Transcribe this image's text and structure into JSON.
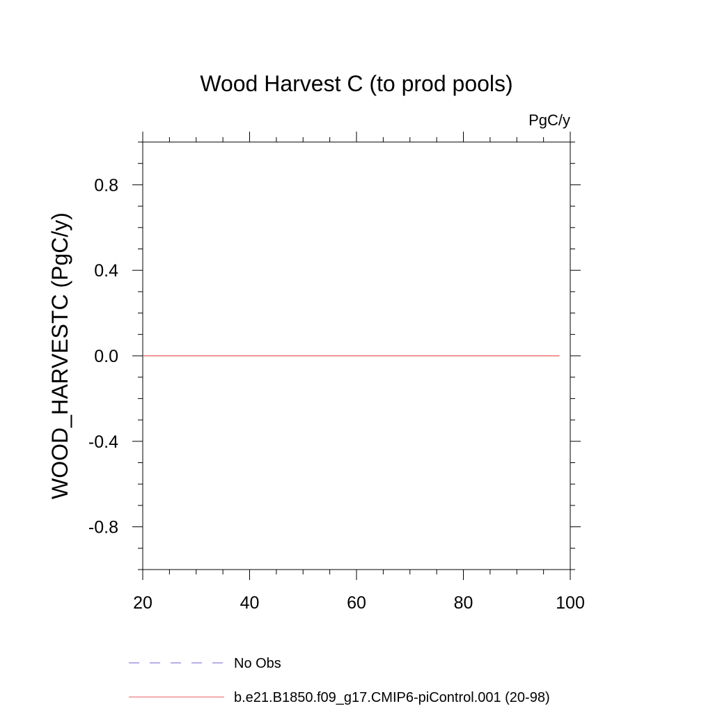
{
  "chart_data": {
    "type": "line",
    "title": "Wood Harvest C (to prod pools)",
    "units": "PgC/y",
    "ylabel": "WOOD_HARVESTC  (PgC/y)",
    "xlabel": "",
    "xlim": [
      20,
      100
    ],
    "ylim": [
      -1.0,
      1.0
    ],
    "x_ticks": [
      20,
      40,
      60,
      80,
      100
    ],
    "y_ticks": [
      -0.8,
      -0.4,
      0.0,
      0.4,
      0.8
    ],
    "x_tick_labels": [
      "20",
      "40",
      "60",
      "80",
      "100"
    ],
    "y_tick_labels": [
      "-0.8",
      "-0.4",
      "0.0",
      "0.4",
      "0.8"
    ],
    "grid": false,
    "legend_position": "bottom",
    "series": [
      {
        "name": "No Obs",
        "color": "#6f5fd0",
        "dash": "dashed",
        "x": [],
        "y": []
      },
      {
        "name": "b.e21.B1850.f09_g17.CMIP6-piControl.001 (20-98)",
        "color": "#e8585b",
        "dash": "solid",
        "x": [
          20,
          98
        ],
        "y": [
          0.0,
          0.0
        ]
      }
    ]
  }
}
